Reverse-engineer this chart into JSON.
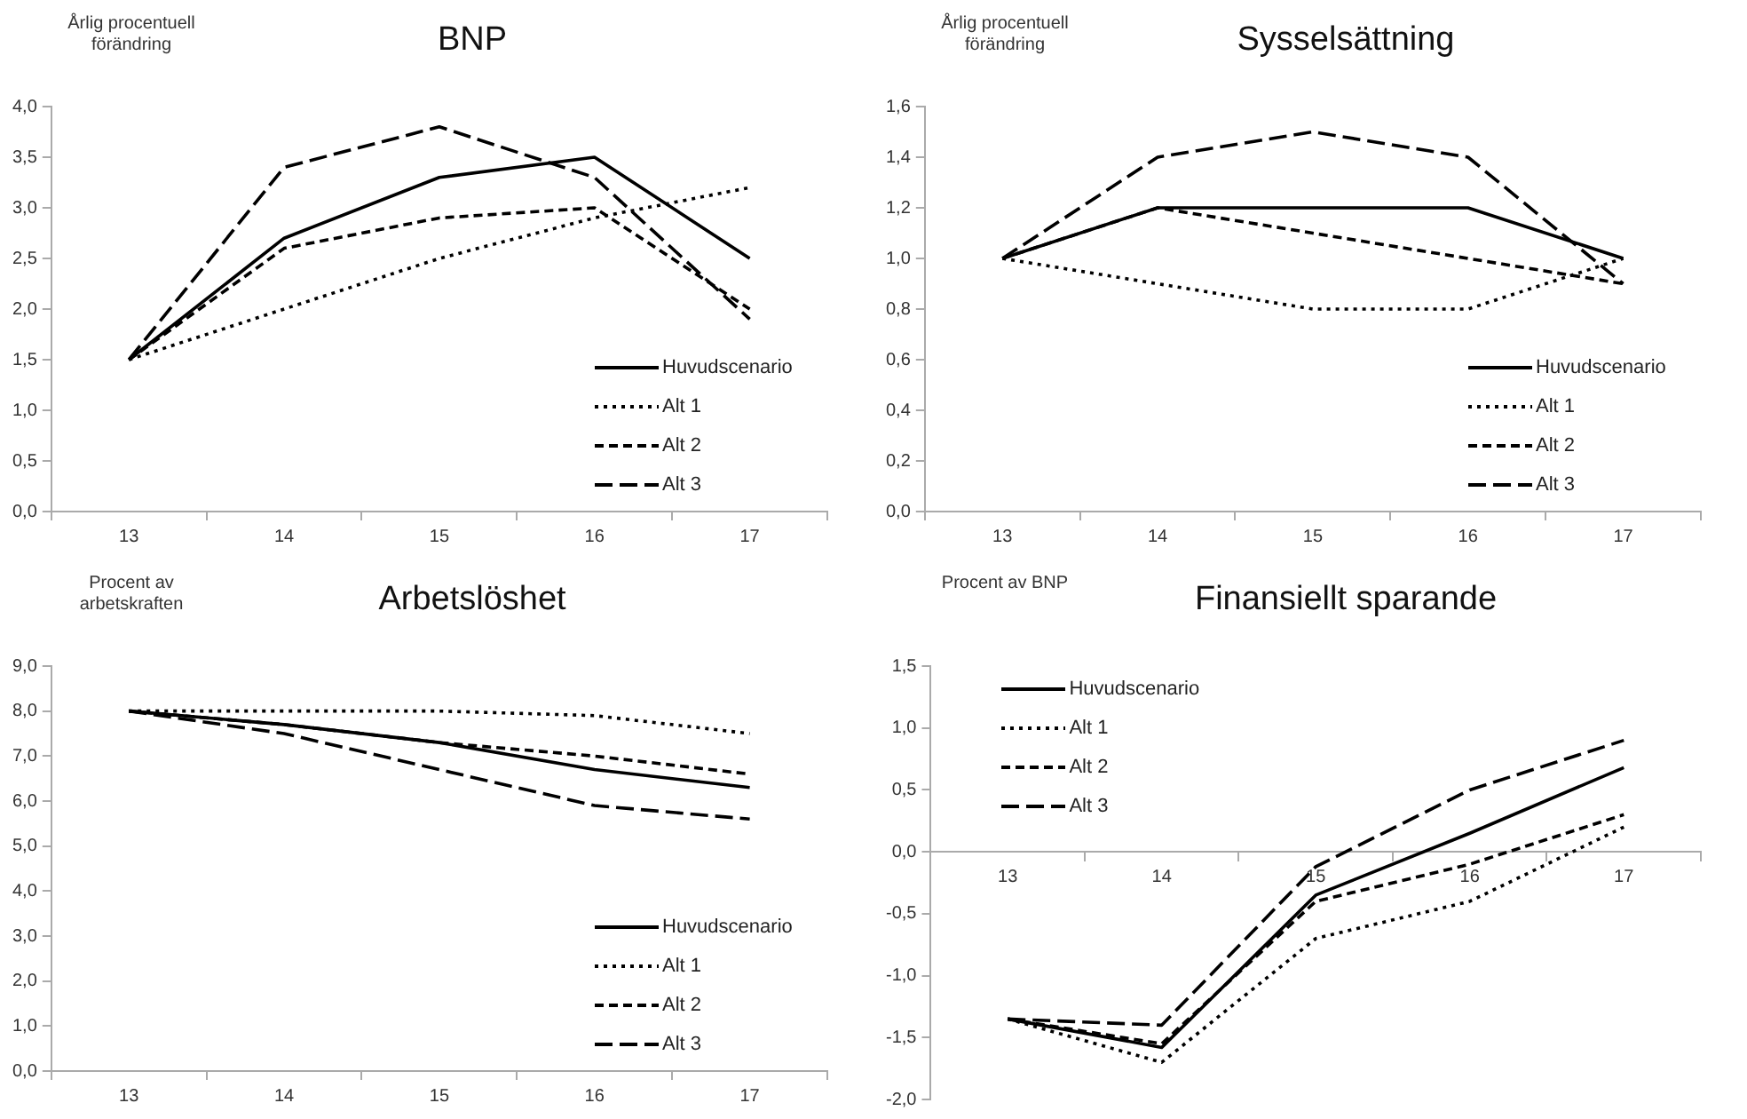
{
  "chart_data": [
    {
      "type": "line",
      "title": "BNP",
      "ylabel": "Årlig procentuell förändring",
      "categories": [
        "13",
        "14",
        "15",
        "16",
        "17"
      ],
      "ylim": [
        0,
        4
      ],
      "yticks": [
        {
          "value": 0,
          "label": "0,0"
        },
        {
          "value": 0.5,
          "label": "0,5"
        },
        {
          "value": 1,
          "label": "1,0"
        },
        {
          "value": 1.5,
          "label": "1,5"
        },
        {
          "value": 2,
          "label": "2,0"
        },
        {
          "value": 2.5,
          "label": "2,5"
        },
        {
          "value": 3,
          "label": "3,0"
        },
        {
          "value": 3.5,
          "label": "3,5"
        },
        {
          "value": 4,
          "label": "4,0"
        }
      ],
      "grid": false,
      "legend": "bottom right",
      "marker": "none",
      "series": [
        {
          "name": "Huvudscenario",
          "color": "#000000",
          "line_style": "solid",
          "values": [
            1.5,
            2.7,
            3.3,
            3.5,
            2.5
          ]
        },
        {
          "name": "Alt 1",
          "color": "#000000",
          "line_style": "dotted",
          "values": [
            1.5,
            2.0,
            2.5,
            2.9,
            3.2
          ]
        },
        {
          "name": "Alt 2",
          "color": "#000000",
          "line_style": "dashed",
          "values": [
            1.5,
            2.6,
            2.9,
            3.0,
            2.0
          ]
        },
        {
          "name": "Alt 3",
          "color": "#000000",
          "line_style": "dashed",
          "values": [
            1.5,
            3.4,
            3.8,
            3.3,
            1.9
          ]
        }
      ]
    },
    {
      "type": "line",
      "title": "Sysselsättning",
      "ylabel": "Årlig procentuell förändring",
      "categories": [
        "13",
        "14",
        "15",
        "16",
        "17"
      ],
      "ylim": [
        0,
        1.6
      ],
      "yticks": [
        {
          "value": 0,
          "label": "0,0"
        },
        {
          "value": 0.2,
          "label": "0,2"
        },
        {
          "value": 0.4,
          "label": "0,4"
        },
        {
          "value": 0.6,
          "label": "0,6"
        },
        {
          "value": 0.8,
          "label": "0,8"
        },
        {
          "value": 1,
          "label": "1,0"
        },
        {
          "value": 1.2,
          "label": "1,2"
        },
        {
          "value": 1.4,
          "label": "1,4"
        },
        {
          "value": 1.6,
          "label": "1,6"
        }
      ],
      "grid": false,
      "legend": "bottom right",
      "marker": "none",
      "series": [
        {
          "name": "Huvudscenario",
          "color": "#000000",
          "line_style": "solid",
          "values": [
            1.0,
            1.2,
            1.2,
            1.2,
            1.0
          ]
        },
        {
          "name": "Alt 1",
          "color": "#000000",
          "line_style": "dotted",
          "values": [
            1.0,
            0.9,
            0.8,
            0.8,
            1.0
          ]
        },
        {
          "name": "Alt 2",
          "color": "#000000",
          "line_style": "dashed",
          "values": [
            1.0,
            1.2,
            1.1,
            1.0,
            0.9
          ]
        },
        {
          "name": "Alt 3",
          "color": "#000000",
          "line_style": "dashed",
          "values": [
            1.0,
            1.4,
            1.5,
            1.4,
            0.9
          ]
        }
      ]
    },
    {
      "type": "line",
      "title": "Arbetslöshet",
      "ylabel": "Procent av arbetskraften",
      "categories": [
        "13",
        "14",
        "15",
        "16",
        "17"
      ],
      "ylim": [
        0,
        9
      ],
      "yticks": [
        {
          "value": 0,
          "label": "0,0"
        },
        {
          "value": 1,
          "label": "1,0"
        },
        {
          "value": 2,
          "label": "2,0"
        },
        {
          "value": 3,
          "label": "3,0"
        },
        {
          "value": 4,
          "label": "4,0"
        },
        {
          "value": 5,
          "label": "5,0"
        },
        {
          "value": 6,
          "label": "6,0"
        },
        {
          "value": 7,
          "label": "7,0"
        },
        {
          "value": 8,
          "label": "8,0"
        },
        {
          "value": 9,
          "label": "9,0"
        }
      ],
      "grid": false,
      "legend": "bottom right",
      "marker": "none",
      "series": [
        {
          "name": "Huvudscenario",
          "color": "#000000",
          "line_style": "solid",
          "values": [
            8.0,
            7.7,
            7.3,
            6.7,
            6.3
          ]
        },
        {
          "name": "Alt 1",
          "color": "#000000",
          "line_style": "dotted",
          "values": [
            8.0,
            8.0,
            8.0,
            7.9,
            7.5
          ]
        },
        {
          "name": "Alt 2",
          "color": "#000000",
          "line_style": "dashed",
          "values": [
            8.0,
            7.7,
            7.3,
            7.0,
            6.6
          ]
        },
        {
          "name": "Alt 3",
          "color": "#000000",
          "line_style": "dashed",
          "values": [
            8.0,
            7.5,
            6.7,
            5.9,
            5.6
          ]
        }
      ]
    },
    {
      "type": "line",
      "title": "Finansiellt sparande",
      "ylabel": "Procent av BNP",
      "categories": [
        "13",
        "14",
        "15",
        "16",
        "17"
      ],
      "ylim": [
        -2,
        1.5
      ],
      "yticks": [
        {
          "value": -2,
          "label": "-2,0"
        },
        {
          "value": -1.5,
          "label": "-1,5"
        },
        {
          "value": -1,
          "label": "-1,0"
        },
        {
          "value": -0.5,
          "label": "-0,5"
        },
        {
          "value": 0,
          "label": "0,0"
        },
        {
          "value": 0.5,
          "label": "0,5"
        },
        {
          "value": 1,
          "label": "1,0"
        },
        {
          "value": 1.5,
          "label": "1,5"
        }
      ],
      "grid": false,
      "legend": "top left",
      "marker": "none",
      "series": [
        {
          "name": "Huvudscenario",
          "color": "#000000",
          "line_style": "solid",
          "values": [
            -1.35,
            -1.58,
            -0.35,
            0.15,
            0.68
          ]
        },
        {
          "name": "Alt 1",
          "color": "#000000",
          "line_style": "dotted",
          "values": [
            -1.35,
            -1.7,
            -0.7,
            -0.4,
            0.2
          ]
        },
        {
          "name": "Alt 2",
          "color": "#000000",
          "line_style": "dashed",
          "values": [
            -1.35,
            -1.55,
            -0.4,
            -0.1,
            0.3
          ]
        },
        {
          "name": "Alt 3",
          "color": "#000000",
          "line_style": "dashed",
          "values": [
            -1.35,
            -1.4,
            -0.12,
            0.5,
            0.9
          ]
        }
      ]
    }
  ]
}
